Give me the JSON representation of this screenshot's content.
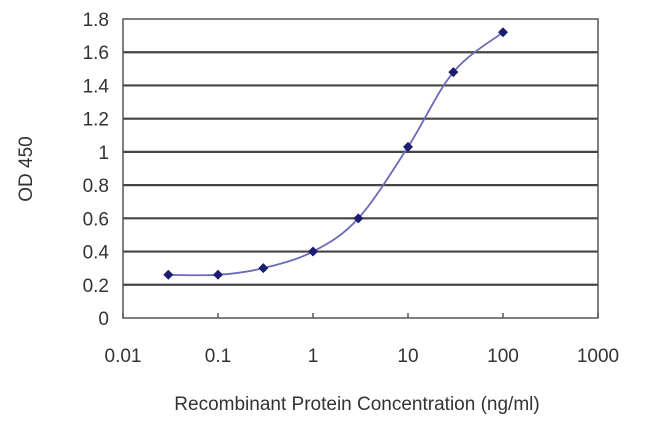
{
  "chart_data": {
    "type": "line",
    "title": "",
    "xlabel": "Recombinant Protein Concentration (ng/ml)",
    "ylabel": "OD 450",
    "x_scale": "log",
    "xlim": [
      0.01,
      1000
    ],
    "ylim": [
      0,
      1.8
    ],
    "x_ticks": [
      "0.01",
      "0.1",
      "1",
      "10",
      "100",
      "1000"
    ],
    "y_ticks": [
      "0",
      "0.2",
      "0.4",
      "0.6",
      "0.8",
      "1",
      "1.2",
      "1.4",
      "1.6",
      "1.8"
    ],
    "grid": "horizontal",
    "series": [
      {
        "x": [
          0.03,
          0.1,
          0.3,
          1,
          3,
          10,
          30,
          100
        ],
        "y": [
          0.26,
          0.26,
          0.3,
          0.4,
          0.6,
          1.03,
          1.48,
          1.72
        ]
      }
    ],
    "colors": {
      "line": "#6a6ab8",
      "marker": "#1c1c70",
      "grid": "#444444"
    }
  }
}
